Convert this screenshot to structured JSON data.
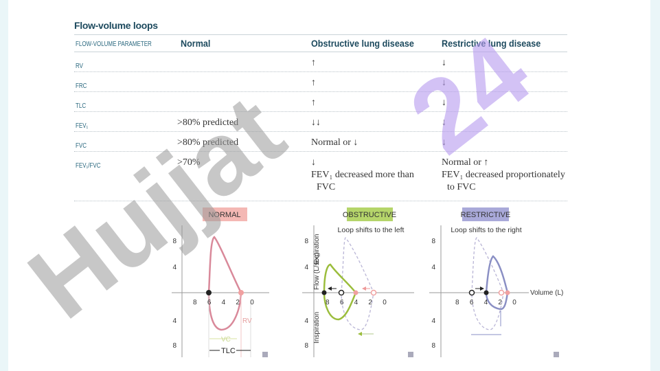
{
  "title": "Flow-volume loops",
  "table": {
    "headers": [
      "FLOW-VOLUME PARAMETER",
      "Normal",
      "Obstructive lung disease",
      "Restrictive lung disease"
    ],
    "rows": [
      {
        "param": "RV",
        "normal": "",
        "obstructive": "↑",
        "restrictive": "↓"
      },
      {
        "param": "FRC",
        "normal": "",
        "obstructive": "↑",
        "restrictive": "↓"
      },
      {
        "param": "TLC",
        "normal": "",
        "obstructive": "↑",
        "restrictive": "↓"
      },
      {
        "param": "FEV₁",
        "normal": ">80% predicted",
        "obstructive": "↓↓",
        "restrictive": "↓"
      },
      {
        "param": "FVC",
        "normal": ">80% predicted",
        "obstructive": "Normal or ↓",
        "restrictive": "↓"
      },
      {
        "param": "FEV₁/FVC",
        "normal": ">70%",
        "obstructive": "↓",
        "obstructive_note_1": "FEV₁ decreased more than",
        "obstructive_note_2": "FVC",
        "restrictive": "Normal or ↑",
        "restrictive_note_1": "FEV₁ decreased proportionately",
        "restrictive_note_2": "to FVC"
      }
    ]
  },
  "diagrams": {
    "normal": {
      "label": "NORMAL",
      "color": "#f4b8b4",
      "loop_color": "#d9899a",
      "rv": "RV",
      "vc": "VC",
      "tlc": "TLC"
    },
    "obstructive": {
      "label": "OBSTRUCTIVE",
      "color": "#b5d56a",
      "loop_color": "#9bbd3c",
      "caption": "Loop shifts to the left"
    },
    "restrictive": {
      "label": "RESTRICTIVE",
      "color": "#a9a9d9",
      "loop_color": "#8a8fc4",
      "caption": "Loop shifts to the right"
    },
    "y_label": "Flow (L/sec)",
    "y_top": "Expiration",
    "y_bottom": "Inspiration",
    "x_label": "Volume (L)",
    "y_ticks": [
      "8",
      "4",
      "4",
      "8"
    ],
    "x_ticks": [
      "8",
      "6",
      "4",
      "2",
      "0"
    ]
  },
  "watermark": {
    "text_gray": "Hujjat",
    "text_purple": "24"
  }
}
